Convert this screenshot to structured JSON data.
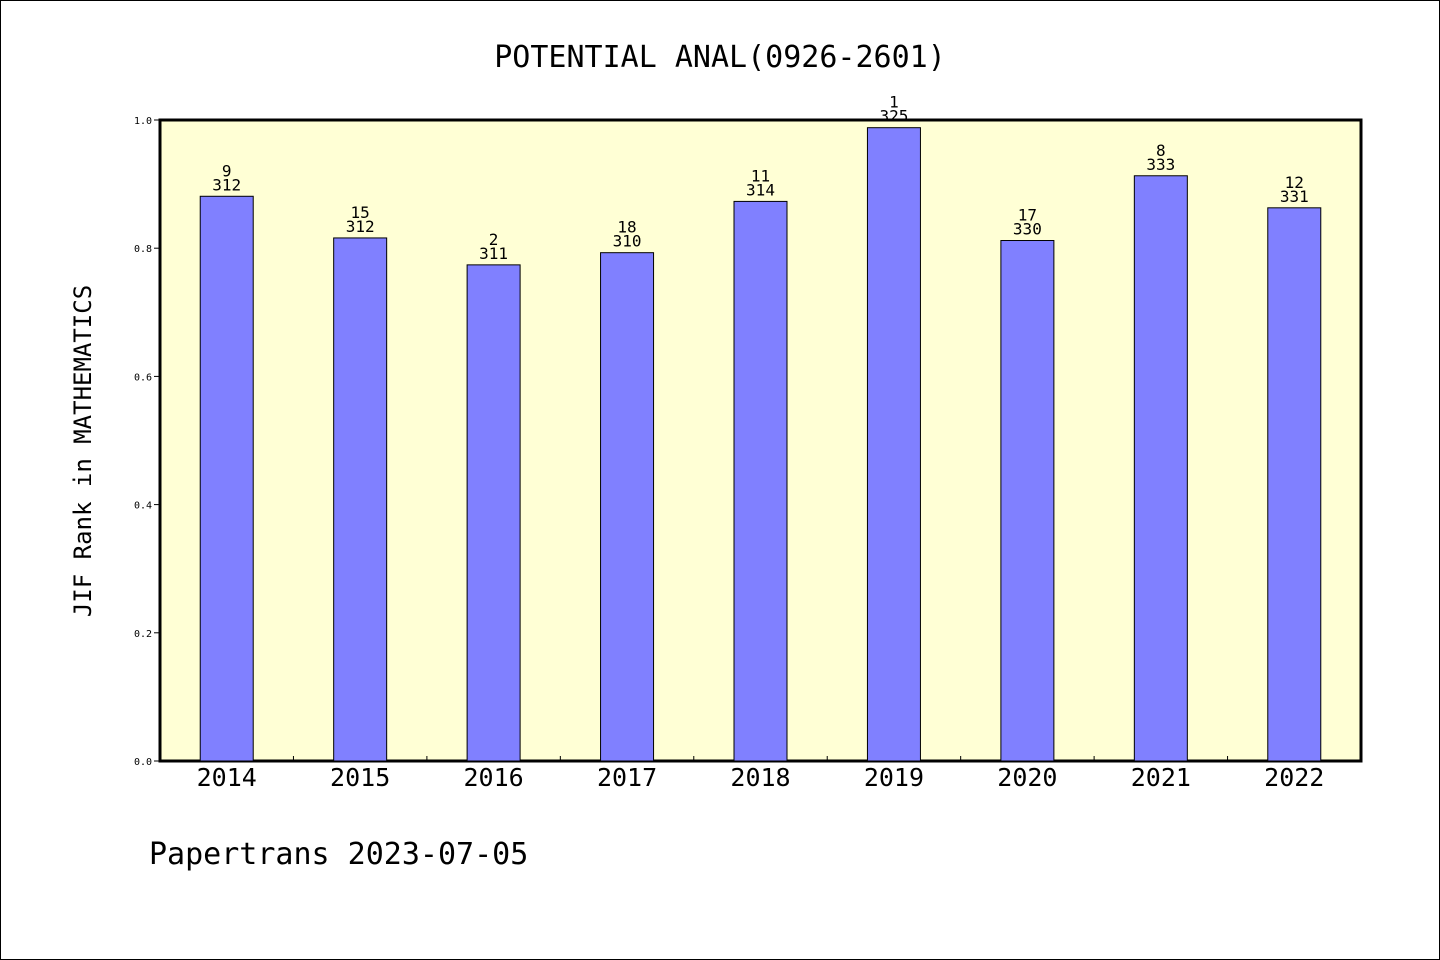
{
  "chart_data": {
    "type": "bar",
    "title": "POTENTIAL ANAL(0926-2601)",
    "xlabel": "",
    "ylabel": "JIF Rank in MATHEMATICS",
    "ylim": [
      0,
      1.0
    ],
    "yticks": [
      "0.0",
      "0.2",
      "0.4",
      "0.6",
      "0.8",
      "1.0"
    ],
    "ytick_values": [
      0,
      0.2,
      0.4,
      0.6,
      0.8,
      1.0
    ],
    "categories": [
      "2014",
      "2015",
      "2016",
      "2017",
      "2018",
      "2019",
      "2020",
      "2021",
      "2022"
    ],
    "values": [
      0.881,
      0.816,
      0.774,
      0.793,
      0.873,
      0.988,
      0.812,
      0.913,
      0.863
    ],
    "rank_labels": [
      "9",
      "15",
      "2",
      "18",
      "11",
      "1",
      "17",
      "8",
      "12"
    ],
    "total_labels": [
      "312",
      "312",
      "311",
      "310",
      "314",
      "325",
      "330",
      "333",
      "331"
    ],
    "grid": false,
    "legend": "none",
    "colors": {
      "plot_background": "#ffffd5",
      "bar_fill": "#8080ff",
      "bar_stroke": "#000000"
    }
  },
  "footer": "Papertrans 2023-07-05"
}
